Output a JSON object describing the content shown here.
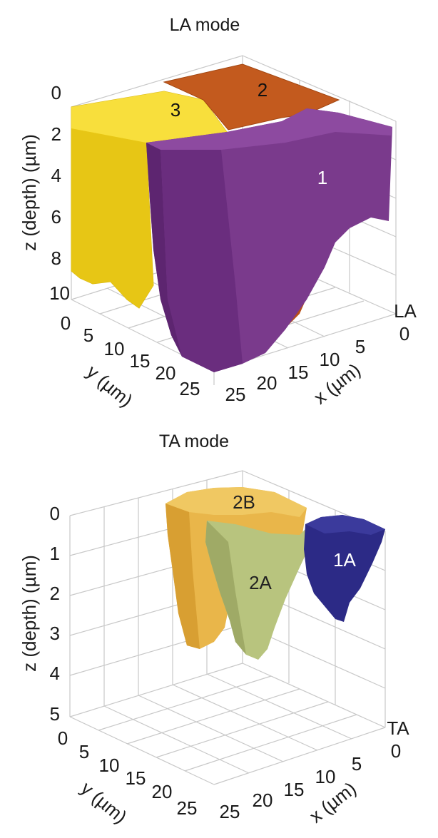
{
  "panels": [
    {
      "title": "LA mode",
      "axis_labels": {
        "z": "z (depth) (µm)",
        "y": "y (µm)",
        "x": "x (µm)"
      },
      "z_ticks": [
        "0",
        "2",
        "4",
        "6",
        "8",
        "10"
      ],
      "y_ticks": [
        "0",
        "5",
        "10",
        "15",
        "20",
        "25"
      ],
      "x_ticks": [
        "25",
        "20",
        "15",
        "10",
        "5",
        "0"
      ],
      "corner_label": "LA",
      "grains": [
        {
          "label": "3",
          "color": "#f5d41c"
        },
        {
          "label": "2",
          "color": "#c35a1e"
        },
        {
          "label": "1",
          "color": "#7a3a8c"
        }
      ]
    },
    {
      "title": "TA mode",
      "axis_labels": {
        "z": "z (depth) (µm)",
        "y": "y (µm)",
        "x": "x (µm)"
      },
      "z_ticks": [
        "0",
        "1",
        "2",
        "3",
        "4",
        "5"
      ],
      "y_ticks": [
        "0",
        "5",
        "10",
        "15",
        "20",
        "25"
      ],
      "x_ticks": [
        "25",
        "20",
        "15",
        "10",
        "5",
        "0"
      ],
      "corner_label": "TA",
      "grains": [
        {
          "label": "2B",
          "color": "#e9b64a"
        },
        {
          "label": "2A",
          "color": "#b8c47e"
        },
        {
          "label": "1A",
          "color": "#2c2a86"
        }
      ]
    }
  ]
}
